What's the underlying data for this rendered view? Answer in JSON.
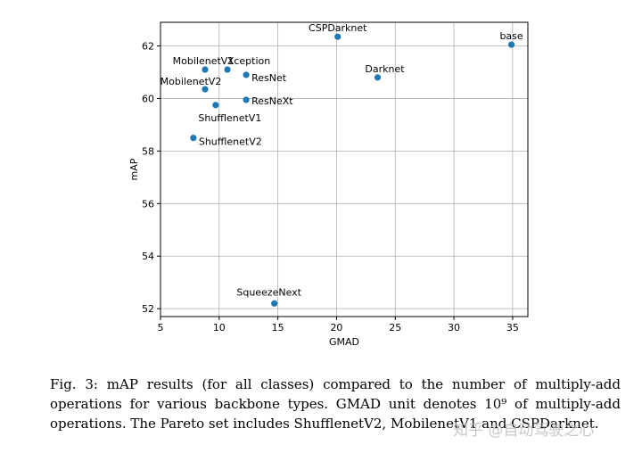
{
  "chart_data": {
    "type": "scatter",
    "xlabel": "GMAD",
    "ylabel": "mAP",
    "xlim": [
      5,
      36.3
    ],
    "ylim": [
      51.7,
      62.9
    ],
    "xticks": [
      5,
      10,
      15,
      20,
      25,
      30,
      35
    ],
    "yticks": [
      52,
      54,
      56,
      58,
      60,
      62
    ],
    "grid": true,
    "point_color": "#1f77b4",
    "points": [
      {
        "label": "CSPDarknet",
        "x": 20.1,
        "y": 62.35
      },
      {
        "label": "base",
        "x": 34.9,
        "y": 62.05
      },
      {
        "label": "MobilenetV1",
        "x": 8.8,
        "y": 61.1
      },
      {
        "label": "Xception",
        "x": 10.7,
        "y": 61.1
      },
      {
        "label": "ResNet",
        "x": 12.3,
        "y": 60.9
      },
      {
        "label": "Darknet",
        "x": 23.5,
        "y": 60.8
      },
      {
        "label": "MobilenetV2",
        "x": 8.8,
        "y": 60.35
      },
      {
        "label": "ResNeXt",
        "x": 12.3,
        "y": 59.95
      },
      {
        "label": "ShufflenetV1",
        "x": 9.7,
        "y": 59.75
      },
      {
        "label": "ShufflenetV2",
        "x": 7.8,
        "y": 58.5
      },
      {
        "label": "SqueezeNext",
        "x": 14.7,
        "y": 52.2
      }
    ]
  },
  "caption": "Fig. 3: mAP results (for all classes) compared to the number of multiply-add operations for various backbone types. GMAD unit denotes 10⁹ of multiply-add operations. The Pareto set includes ShufflenetV2, MobilenetV1 and CSPDarknet.",
  "watermark": "知乎 @自动驾驶之心"
}
